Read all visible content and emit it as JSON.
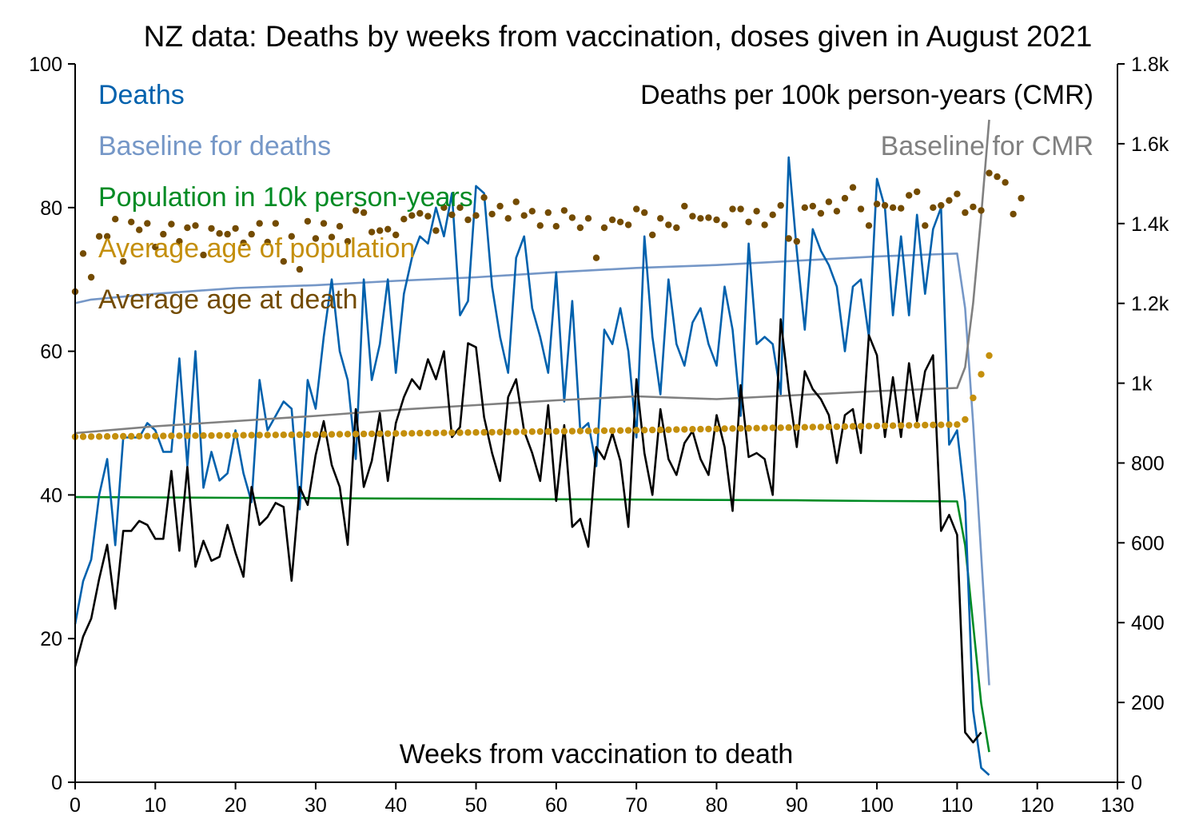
{
  "chart_data": {
    "type": "line",
    "title": "NZ data: Deaths by weeks from vaccination, doses given in August 2021",
    "xlabel": "Weeks from vaccination to death",
    "xlim": [
      0,
      130
    ],
    "ylim_left": [
      0,
      100
    ],
    "ylim_right": [
      0,
      1800
    ],
    "x_ticks": [
      0,
      10,
      20,
      30,
      40,
      50,
      60,
      70,
      80,
      90,
      100,
      110,
      120,
      130
    ],
    "left_ticks": [
      0,
      20,
      40,
      60,
      80,
      100
    ],
    "right_ticks": [
      0,
      200,
      400,
      600,
      800,
      1000,
      1200,
      1400,
      1600,
      1800
    ],
    "right_tick_labels": [
      "0",
      "200",
      "400",
      "600",
      "800",
      "1k",
      "1.2k",
      "1.4k",
      "1.6k",
      "1.8k"
    ],
    "grid": false,
    "legend_position": "top-left and top-right, text only",
    "series": [
      {
        "name": "Deaths",
        "axis": "left",
        "style": "line",
        "color": "#0061ad",
        "values": [
          22,
          28,
          31,
          40,
          45,
          33,
          48,
          48,
          48,
          50,
          49,
          46,
          46,
          59,
          44,
          60,
          41,
          46,
          42,
          43,
          49,
          43,
          39,
          56,
          49,
          51,
          53,
          52,
          38,
          56,
          52,
          62,
          70,
          60,
          56,
          45,
          70,
          56,
          61,
          70,
          57,
          68,
          73,
          76,
          75,
          80,
          76,
          82,
          65,
          67,
          83,
          82,
          69,
          62,
          57,
          73,
          76,
          66,
          62,
          57,
          71,
          53,
          67,
          49,
          50,
          44,
          63,
          61,
          66,
          60,
          48,
          76,
          62,
          54,
          70,
          61,
          58,
          64,
          66,
          61,
          58,
          69,
          63,
          51,
          75,
          61,
          62,
          61,
          54,
          87,
          74,
          63,
          77,
          74,
          72,
          69,
          60,
          69,
          70,
          62,
          84,
          80,
          65,
          76,
          65,
          79,
          68,
          77,
          80,
          47,
          49,
          39,
          10,
          2,
          1
        ]
      },
      {
        "name": "Baseline for deaths",
        "axis": "left",
        "style": "line",
        "color": "#7597c7",
        "points": [
          [
            0,
            66.7
          ],
          [
            2,
            67.2
          ],
          [
            10,
            68.0
          ],
          [
            20,
            68.8
          ],
          [
            30,
            69.2
          ],
          [
            40,
            69.8
          ],
          [
            50,
            70.3
          ],
          [
            60,
            71.0
          ],
          [
            70,
            71.6
          ],
          [
            80,
            72.0
          ],
          [
            90,
            72.6
          ],
          [
            100,
            73.2
          ],
          [
            110,
            73.6
          ],
          [
            111,
            66
          ],
          [
            112,
            50
          ],
          [
            114,
            13.5
          ]
        ]
      },
      {
        "name": "Population in 10k person-years",
        "axis": "left",
        "style": "line",
        "color": "#008b24",
        "points": [
          [
            0,
            39.7
          ],
          [
            10,
            39.65
          ],
          [
            20,
            39.6
          ],
          [
            30,
            39.55
          ],
          [
            40,
            39.5
          ],
          [
            50,
            39.45
          ],
          [
            60,
            39.4
          ],
          [
            70,
            39.35
          ],
          [
            80,
            39.3
          ],
          [
            90,
            39.25
          ],
          [
            100,
            39.15
          ],
          [
            110,
            39.1
          ],
          [
            111,
            33
          ],
          [
            112,
            22
          ],
          [
            113,
            11
          ],
          [
            114,
            4.2
          ]
        ]
      },
      {
        "name": "Average age of population",
        "axis": "left",
        "style": "dots",
        "color": "#c48f0c",
        "points": [
          [
            0,
            48.1
          ],
          [
            10,
            48.2
          ],
          [
            20,
            48.3
          ],
          [
            30,
            48.4
          ],
          [
            40,
            48.55
          ],
          [
            50,
            48.7
          ],
          [
            60,
            48.85
          ],
          [
            70,
            49.0
          ],
          [
            80,
            49.2
          ],
          [
            90,
            49.4
          ],
          [
            100,
            49.6
          ],
          [
            110,
            49.8
          ],
          [
            111,
            50.5
          ],
          [
            112,
            53.5
          ],
          [
            113,
            56.8
          ],
          [
            114,
            59.4
          ]
        ]
      },
      {
        "name": "Average age at death",
        "axis": "left",
        "style": "dots",
        "color": "#734b00",
        "values": [
          68.3,
          73.6,
          70.3,
          76,
          76,
          78.4,
          72.5,
          78,
          76.9,
          77.8,
          74.5,
          76.3,
          77.7,
          75.3,
          77.2,
          77.5,
          73.4,
          77.1,
          76.4,
          76.3,
          77.1,
          75.1,
          76.3,
          77.8,
          75.2,
          77.8,
          72.5,
          76,
          71.4,
          78.1,
          75.7,
          77.8,
          75.9,
          77.4,
          75.3,
          79.6,
          79.3,
          76.6,
          76.8,
          77,
          76.2,
          78.4,
          78.9,
          79.2,
          78.8,
          76.8,
          80,
          79,
          80,
          78.3,
          78.9,
          81.4,
          79.1,
          80.2,
          78.5,
          80.8,
          78.9,
          79.5,
          77.5,
          79.3,
          77.4,
          79.6,
          78.6,
          77.2,
          78.5,
          73,
          77.2,
          78.3,
          78,
          77.6,
          79.8,
          79.3,
          76.2,
          78.5,
          77.6,
          77.2,
          80.2,
          78.8,
          78.5,
          78.6,
          78.3,
          77.6,
          79.8,
          79.8,
          78,
          79.5,
          77.6,
          79,
          80.3,
          75.7,
          75.3,
          80,
          80.2,
          79.2,
          80.8,
          79.5,
          81.3,
          82.8,
          79.8,
          77.5,
          80.5,
          80.3,
          80,
          79.9,
          81.7,
          82.2,
          77.5,
          80,
          80.3,
          81,
          81.9,
          79.3,
          80.1,
          79.6,
          84.8,
          84.3,
          83.5,
          79.1,
          81.3
        ]
      },
      {
        "name": "Deaths per 100k person-years (CMR)",
        "axis": "right",
        "style": "line",
        "color": "#000000",
        "values": [
          290,
          365,
          410,
          510,
          595,
          435,
          630,
          630,
          655,
          645,
          610,
          610,
          780,
          580,
          790,
          540,
          605,
          555,
          565,
          645,
          575,
          515,
          740,
          645,
          665,
          700,
          690,
          505,
          740,
          695,
          820,
          905,
          795,
          740,
          595,
          935,
          740,
          805,
          925,
          755,
          900,
          965,
          1010,
          985,
          1060,
          1010,
          1080,
          865,
          890,
          1100,
          1090,
          915,
          825,
          755,
          965,
          1010,
          880,
          825,
          755,
          945,
          705,
          895,
          640,
          660,
          590,
          840,
          810,
          875,
          805,
          640,
          1010,
          825,
          720,
          935,
          810,
          770,
          850,
          880,
          810,
          770,
          920,
          840,
          680,
          995,
          815,
          825,
          810,
          720,
          1160,
          985,
          840,
          1030,
          985,
          960,
          920,
          800,
          920,
          935,
          825,
          1120,
          1070,
          865,
          1015,
          865,
          1050,
          905,
          1030,
          1070,
          630,
          670,
          620,
          125,
          100,
          125
        ]
      },
      {
        "name": "Baseline for CMR",
        "axis": "right",
        "style": "line",
        "color": "#808080",
        "points": [
          [
            0,
            875
          ],
          [
            10,
            892
          ],
          [
            20,
            905
          ],
          [
            30,
            918
          ],
          [
            40,
            933
          ],
          [
            50,
            945
          ],
          [
            60,
            957
          ],
          [
            70,
            967
          ],
          [
            80,
            960
          ],
          [
            90,
            970
          ],
          [
            100,
            980
          ],
          [
            110,
            988
          ],
          [
            111,
            1040
          ],
          [
            112,
            1200
          ],
          [
            113,
            1420
          ],
          [
            114,
            1660
          ]
        ]
      }
    ]
  },
  "legend": {
    "deaths": "Deaths",
    "baseline_deaths": "Baseline for deaths",
    "population": "Population in 10k person-years",
    "avg_age_pop": "Average age of population",
    "avg_age_death": "Average age at death",
    "cmr": "Deaths per 100k person-years (CMR)",
    "baseline_cmr": "Baseline for CMR"
  },
  "colors": {
    "deaths": "#0061ad",
    "baseline_deaths": "#7597c7",
    "population": "#008b24",
    "avg_age_pop": "#c48f0c",
    "avg_age_death": "#734b00",
    "cmr": "#000000",
    "baseline_cmr": "#808080"
  }
}
